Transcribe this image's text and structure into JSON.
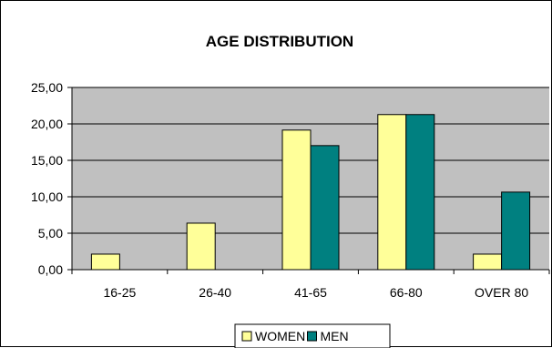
{
  "chart_data": {
    "type": "bar",
    "title": "AGE DISTRIBUTION",
    "xlabel": "",
    "ylabel": "",
    "categories": [
      "16-25",
      "26-40",
      "41-65",
      "66-80",
      "OVER 80"
    ],
    "series": [
      {
        "name": "WOMEN",
        "values": [
          2.13,
          6.38,
          19.15,
          21.28,
          2.13
        ],
        "color": "#ffff99"
      },
      {
        "name": "MEN",
        "values": [
          0,
          0,
          17.02,
          21.28,
          10.64
        ],
        "color": "#008080"
      }
    ],
    "ylim": [
      0,
      25
    ],
    "yticks": [
      "0,00",
      "5,00",
      "10,00",
      "15,00",
      "20,00",
      "25,00"
    ],
    "ytick_values": [
      0,
      5,
      10,
      15,
      20,
      25
    ],
    "grid": true,
    "plot_background": "#c0c0c0",
    "legend_position": "bottom"
  }
}
